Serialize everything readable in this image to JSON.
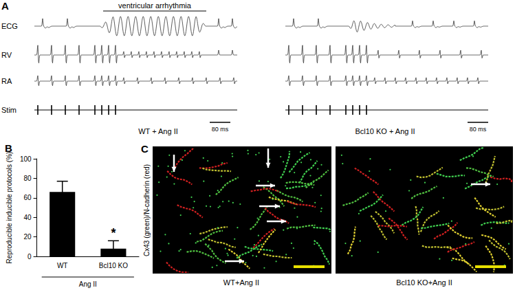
{
  "panel_a": {
    "panel": "A",
    "title": "ventricular arrhythmia",
    "traces": [
      "ECG",
      "RV",
      "RA",
      "Stim"
    ],
    "left_caption": "WT + Ang II",
    "right_caption": "Bcl10 KO + Ang II",
    "scale_bar": "80 ms"
  },
  "chart_data": {
    "type": "bar",
    "panel": "B",
    "ylabel": "Reproducible inducible protocols (%)",
    "categories": [
      "WT",
      "Bcl10 KO"
    ],
    "values": [
      66,
      8
    ],
    "errors": [
      11,
      8
    ],
    "color": "#000000",
    "ylim": [
      0,
      100
    ],
    "yticks": [
      0,
      20,
      40,
      60,
      80,
      100
    ],
    "grid": false,
    "group_label": "Ang II",
    "annotations": [
      {
        "text": "*",
        "category": "Bcl10 KO"
      }
    ]
  },
  "panel_c": {
    "panel": "C",
    "ylabel": "Cx43 (green)/N-cadherin (red)",
    "captions": [
      "WT+Ang II",
      "Bcl10 KO+Ang II"
    ]
  }
}
